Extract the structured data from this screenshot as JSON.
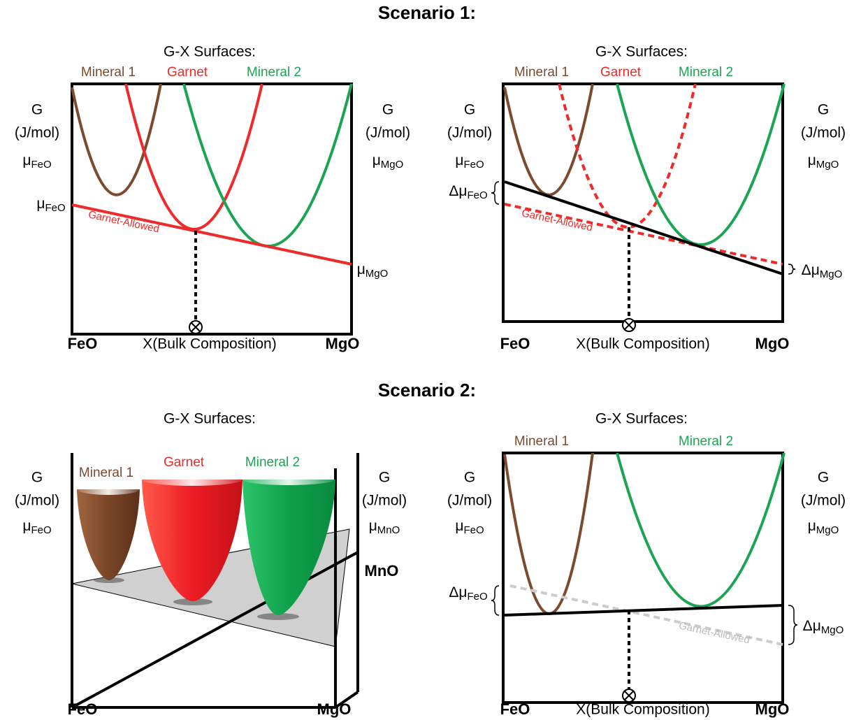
{
  "scenario_1": {
    "title": "Scenario 1:",
    "left": {
      "heading": "G-X Surfaces:",
      "curve_labels": [
        "Mineral 1",
        "Garnet",
        "Mineral 2"
      ],
      "left_axis": {
        "label": "G",
        "unit": "(J/mol)",
        "potential": {
          "symbol": "μ",
          "sub": "FeO"
        }
      },
      "right_axis": {
        "label": "G",
        "unit": "(J/mol)",
        "potential": {
          "symbol": "μ",
          "sub": "MgO"
        }
      },
      "intercepts": [
        {
          "symbol": "μ",
          "sub": "FeO"
        },
        {
          "symbol": "μ",
          "sub": "MgO"
        }
      ],
      "line_label": "Garnet-Allowed",
      "bottom_axis": {
        "left_end": "FeO",
        "label": "X(Bulk Composition)",
        "right_end": "MgO"
      }
    },
    "right": {
      "heading": "G-X Surfaces:",
      "curve_labels": [
        "Mineral 1",
        "Garnet",
        "Mineral 2"
      ],
      "left_axis": {
        "label": "G",
        "unit": "(J/mol)",
        "potential": {
          "symbol": "μ",
          "sub": "FeO"
        }
      },
      "right_axis": {
        "label": "G",
        "unit": "(J/mol)",
        "potential": {
          "symbol": "μ",
          "sub": "MgO"
        }
      },
      "differences": [
        {
          "symbol": "Δμ",
          "sub": "FeO"
        },
        {
          "symbol": "Δμ",
          "sub": "MgO"
        }
      ],
      "line_label": "Garnet-Allowed",
      "bottom_axis": {
        "left_end": "FeO",
        "label": "X(Bulk Composition)",
        "right_end": "MgO"
      }
    }
  },
  "scenario_2": {
    "title": "Scenario 2:",
    "left": {
      "heading": "G-X Surfaces:",
      "curve_labels": [
        "Mineral 1",
        "Garnet",
        "Mineral 2"
      ],
      "left_axis": {
        "label": "G",
        "unit": "(J/mol)",
        "potential": {
          "symbol": "μ",
          "sub": "FeO"
        }
      },
      "right_axis": {
        "label": "G",
        "unit": "(J/mol)",
        "potential": {
          "symbol": "μ",
          "sub": "MnO"
        }
      },
      "depth_axis": "MnO",
      "bottom_axis": {
        "left_end": "FeO",
        "right_end": "MgO"
      }
    },
    "right": {
      "heading": "G-X Surfaces:",
      "curve_labels": [
        "Mineral 1",
        "Mineral 2"
      ],
      "left_axis": {
        "label": "G",
        "unit": "(J/mol)",
        "potential": {
          "symbol": "μ",
          "sub": "FeO"
        }
      },
      "right_axis": {
        "label": "G",
        "unit": "(J/mol)",
        "potential": {
          "symbol": "μ",
          "sub": "MgO"
        }
      },
      "differences": [
        {
          "symbol": "Δμ",
          "sub": "FeO"
        },
        {
          "symbol": "Δμ",
          "sub": "MgO"
        }
      ],
      "line_label": "Garnet-Allowed",
      "bottom_axis": {
        "left_end": "FeO",
        "label": "X(Bulk Composition)",
        "right_end": "MgO"
      }
    }
  }
}
